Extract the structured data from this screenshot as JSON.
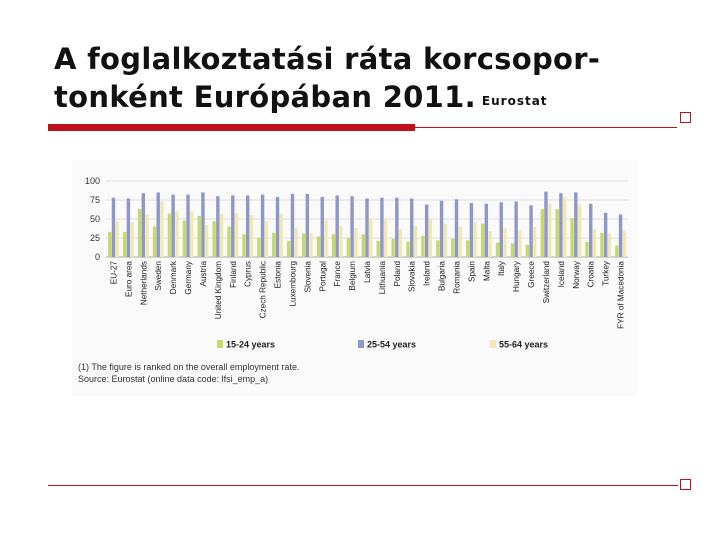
{
  "slide": {
    "title_line1": "A foglalkoztatási ráta korcsopor-",
    "title_line2": "tonként Európában 2011.",
    "subtitle": "Eurostat"
  },
  "colors": {
    "accent": "#c0101c",
    "s1": "#c5da6b",
    "s2": "#8e97c9",
    "s3": "#f3e7b0"
  },
  "chart_data": {
    "type": "bar",
    "ylim": [
      0,
      100
    ],
    "yticks": [
      0,
      25,
      50,
      75,
      100
    ],
    "grid": true,
    "legend_position": "bottom",
    "categories": [
      "EU-27",
      "Euro area",
      "Netherlands",
      "Sweden",
      "Denmark",
      "Germany",
      "Austria",
      "United Kingdom",
      "Finland",
      "Cyprus",
      "Czech Republic",
      "Estonia",
      "Luxembourg",
      "Slovenia",
      "Portugal",
      "France",
      "Belgium",
      "Latvia",
      "Lithuania",
      "Poland",
      "Slovakia",
      "Ireland",
      "Bulgaria",
      "Romania",
      "Spain",
      "Malta",
      "Italy",
      "Hungary",
      "Greece",
      "Switzerland",
      "Iceland",
      "Norway",
      "Croatia",
      "Turkey",
      "FYR of Macedonia"
    ],
    "series": [
      {
        "name": "15-24 years",
        "values": [
          33,
          33,
          63,
          40,
          57,
          48,
          54,
          47,
          40,
          30,
          25,
          32,
          21,
          31,
          27,
          30,
          25,
          30,
          21,
          24,
          20,
          28,
          22,
          24,
          22,
          44,
          19,
          18,
          16,
          63,
          63,
          51,
          20,
          32,
          15
        ]
      },
      {
        "name": "25-54 years",
        "values": [
          78,
          77,
          84,
          85,
          82,
          82,
          85,
          80,
          81,
          81,
          82,
          79,
          83,
          83,
          79,
          81,
          80,
          77,
          78,
          78,
          77,
          69,
          74,
          76,
          71,
          70,
          72,
          73,
          68,
          86,
          84,
          85,
          70,
          58,
          56
        ]
      },
      {
        "name": "55-64 years",
        "values": [
          47,
          46,
          56,
          73,
          60,
          60,
          42,
          57,
          58,
          55,
          47,
          57,
          38,
          31,
          48,
          41,
          38,
          51,
          49,
          37,
          41,
          50,
          44,
          40,
          45,
          34,
          38,
          35,
          40,
          70,
          79,
          69,
          37,
          31,
          35
        ]
      }
    ],
    "notes": [
      "(1) The figure is ranked on the overall employment rate.",
      "Source: Eurostat (online data code: lfsi_emp_a)"
    ]
  }
}
